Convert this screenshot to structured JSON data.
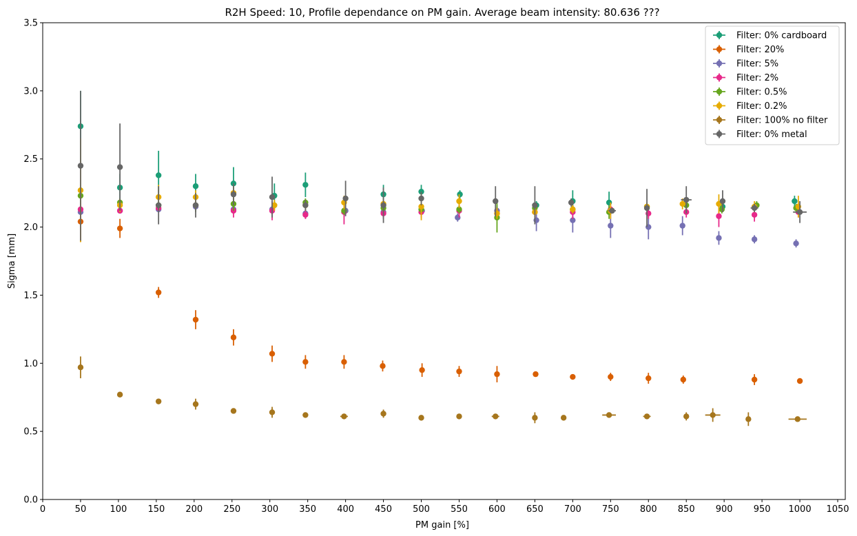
{
  "chart_data": {
    "type": "scatter",
    "title": "R2H Speed: 10, Profile dependance on PM gain. Average beam intensity: 80.636 ???",
    "xlabel": "PM gain [%]",
    "ylabel": "Sigma [mm]",
    "xlim": [
      0,
      1060
    ],
    "ylim": [
      0,
      3.5
    ],
    "xticks": [
      "0",
      "50",
      "100",
      "150",
      "200",
      "250",
      "300",
      "350",
      "400",
      "450",
      "500",
      "550",
      "600",
      "650",
      "700",
      "750",
      "800",
      "850",
      "900",
      "950",
      "1000",
      "1050"
    ],
    "yticks": [
      "0.0",
      "0.5",
      "1.0",
      "1.5",
      "2.0",
      "2.5",
      "3.0",
      "3.5"
    ],
    "grid": false,
    "legend_position": "top-right",
    "series": [
      {
        "name": "Filter: 0% cardboard",
        "color": "#1b9e77",
        "x": [
          50,
          102,
          153,
          202,
          252,
          306,
          347,
          450,
          500,
          551,
          652,
          700,
          748,
          898,
          993
        ],
        "y": [
          2.74,
          2.29,
          2.38,
          2.3,
          2.32,
          2.23,
          2.31,
          2.24,
          2.26,
          2.24,
          2.16,
          2.19,
          2.18,
          2.15,
          2.19
        ],
        "yerr": [
          0.26,
          0.1,
          0.18,
          0.09,
          0.12,
          0.09,
          0.09,
          0.07,
          0.05,
          0.03,
          0.03,
          0.08,
          0.08,
          0.04,
          0.04
        ]
      },
      {
        "name": "Filter: 20%",
        "color": "#d95f02",
        "x": [
          50,
          102,
          153,
          202,
          252,
          303,
          347,
          398,
          449,
          501,
          550,
          600,
          651,
          700,
          750,
          800,
          846,
          940,
          1000
        ],
        "y": [
          2.04,
          1.99,
          1.52,
          1.32,
          1.19,
          1.07,
          1.01,
          1.01,
          0.98,
          0.95,
          0.94,
          0.92,
          0.92,
          0.9,
          0.9,
          0.89,
          0.88,
          0.88,
          0.87
        ],
        "yerr": [
          0.15,
          0.07,
          0.04,
          0.07,
          0.06,
          0.06,
          0.05,
          0.05,
          0.04,
          0.05,
          0.04,
          0.06,
          0.02,
          0.02,
          0.03,
          0.04,
          0.03,
          0.04,
          0.02
        ]
      },
      {
        "name": "Filter: 5%",
        "color": "#7570b3",
        "x": [
          50,
          102,
          153,
          202,
          252,
          303,
          347,
          400,
          450,
          501,
          548,
          600,
          652,
          700,
          750,
          800,
          845,
          893,
          940,
          995
        ],
        "y": [
          2.11,
          2.12,
          2.13,
          2.15,
          2.13,
          2.13,
          2.1,
          2.12,
          2.11,
          2.12,
          2.07,
          2.12,
          2.05,
          2.05,
          2.01,
          2.0,
          2.01,
          1.92,
          1.91,
          1.88
        ],
        "yerr": [
          0.02,
          0.02,
          0.02,
          0.03,
          0.03,
          0.03,
          0.04,
          0.04,
          0.04,
          0.03,
          0.03,
          0.04,
          0.08,
          0.09,
          0.09,
          0.09,
          0.07,
          0.05,
          0.03,
          0.03
        ]
      },
      {
        "name": "Filter: 2%",
        "color": "#e7298a",
        "x": [
          50,
          102,
          153,
          202,
          252,
          303,
          347,
          398,
          450,
          500,
          550,
          600,
          650,
          700,
          750,
          800,
          850,
          893,
          940,
          998
        ],
        "y": [
          2.13,
          2.12,
          2.14,
          2.16,
          2.12,
          2.12,
          2.09,
          2.11,
          2.1,
          2.11,
          2.12,
          2.1,
          2.11,
          2.11,
          2.13,
          2.1,
          2.11,
          2.08,
          2.09,
          2.11
        ],
        "yerr": [
          0.02,
          0.02,
          0.02,
          0.03,
          0.05,
          0.07,
          0.03,
          0.09,
          0.04,
          0.04,
          0.05,
          0.05,
          0.04,
          0.05,
          0.04,
          0.04,
          0.04,
          0.08,
          0.05,
          0.04
        ]
      },
      {
        "name": "Filter: 0.5%",
        "color": "#66a61e",
        "x": [
          50,
          102,
          153,
          202,
          252,
          306,
          347,
          398,
          450,
          500,
          550,
          600,
          650,
          700,
          748,
          798,
          850,
          897,
          943,
          995
        ],
        "y": [
          2.23,
          2.18,
          2.16,
          2.16,
          2.17,
          2.16,
          2.18,
          2.12,
          2.14,
          2.13,
          2.13,
          2.07,
          2.14,
          2.13,
          2.11,
          2.15,
          2.16,
          2.13,
          2.16,
          2.14
        ],
        "yerr": [
          0.05,
          0.03,
          0.03,
          0.05,
          0.05,
          0.03,
          0.03,
          0.03,
          0.03,
          0.03,
          0.03,
          0.11,
          0.03,
          0.03,
          0.05,
          0.03,
          0.03,
          0.03,
          0.03,
          0.03
        ]
      },
      {
        "name": "Filter: 0.2%",
        "color": "#e6ab02",
        "x": [
          50,
          102,
          153,
          202,
          252,
          306,
          347,
          398,
          450,
          500,
          550,
          600,
          650,
          700,
          750,
          798,
          845,
          893,
          940,
          998
        ],
        "y": [
          2.27,
          2.16,
          2.22,
          2.22,
          2.25,
          2.16,
          2.16,
          2.18,
          2.17,
          2.15,
          2.19,
          2.1,
          2.11,
          2.13,
          2.12,
          2.15,
          2.17,
          2.17,
          2.15,
          2.15
        ],
        "yerr": [
          0.38,
          0.05,
          0.09,
          0.05,
          0.05,
          0.04,
          0.04,
          0.05,
          0.04,
          0.1,
          0.05,
          0.04,
          0.04,
          0.03,
          0.06,
          0.03,
          0.04,
          0.07,
          0.04,
          0.08
        ]
      },
      {
        "name": "Filter: 100% no filter",
        "color": "#a6761d",
        "x": [
          50,
          102,
          153,
          202,
          252,
          303,
          347,
          398,
          450,
          500,
          550,
          598,
          650,
          688,
          748,
          798,
          850,
          885,
          932,
          997
        ],
        "y": [
          0.97,
          0.77,
          0.72,
          0.7,
          0.65,
          0.64,
          0.62,
          0.61,
          0.63,
          0.6,
          0.61,
          0.61,
          0.6,
          0.6,
          0.62,
          0.61,
          0.61,
          0.62,
          0.59,
          0.59
        ],
        "yerr": [
          0.08,
          0.01,
          0.02,
          0.04,
          0.02,
          0.04,
          0.01,
          0.02,
          0.03,
          0.01,
          0.02,
          0.02,
          0.04,
          0.01,
          0.02,
          0.01,
          0.03,
          0.05,
          0.05,
          0.01
        ],
        "xerr": [
          0,
          0,
          0,
          0,
          0,
          0,
          0,
          5,
          0,
          0,
          0,
          5,
          0,
          0,
          9,
          5,
          0,
          10,
          0,
          12
        ]
      },
      {
        "name": "Filter: 0% metal",
        "color": "#666666",
        "x": [
          50,
          102,
          153,
          202,
          252,
          303,
          347,
          400,
          450,
          500,
          598,
          650,
          698,
          752,
          798,
          850,
          898,
          940,
          1000
        ],
        "y": [
          2.45,
          2.44,
          2.16,
          2.16,
          2.24,
          2.22,
          2.16,
          2.21,
          2.16,
          2.21,
          2.19,
          2.16,
          2.18,
          2.12,
          2.14,
          2.2,
          2.19,
          2.14,
          2.11
        ],
        "yerr": [
          0.55,
          0.32,
          0.14,
          0.09,
          0.08,
          0.15,
          0.04,
          0.13,
          0.13,
          0.05,
          0.11,
          0.14,
          0.03,
          0.02,
          0.14,
          0.1,
          0.08,
          0.03,
          0.08
        ],
        "xerr": [
          0,
          0,
          0,
          0,
          0,
          0,
          0,
          0,
          0,
          0,
          0,
          0,
          0,
          5,
          0,
          7,
          0,
          5,
          9
        ]
      }
    ]
  }
}
